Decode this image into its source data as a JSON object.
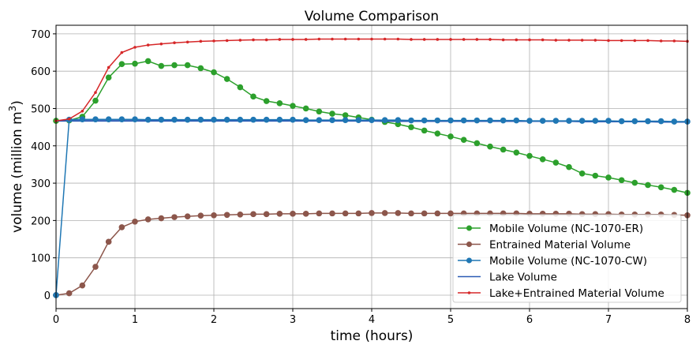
{
  "chart_data": {
    "type": "line",
    "title": "Volume Comparison",
    "xlabel": "time (hours)",
    "ylabel": "volume (million m",
    "ylabel_sup": "3",
    "ylabel_close": ")",
    "xlim": [
      0,
      8
    ],
    "ylim": [
      -36,
      723
    ],
    "xticks": [
      "0",
      "1",
      "2",
      "3",
      "4",
      "5",
      "6",
      "7",
      "8"
    ],
    "yticks": [
      "0",
      "100",
      "200",
      "300",
      "400",
      "500",
      "600",
      "700"
    ],
    "grid": true,
    "legend": "lower-right",
    "x_step_hours": 0.16667,
    "series": [
      {
        "name": "Mobile Volume (NC-1070-ER)",
        "color": "#2ca02c",
        "marker": "circle",
        "values": [
          467,
          468,
          478,
          521,
          583,
          619,
          620,
          627,
          614,
          616,
          616,
          608,
          597,
          579,
          557,
          532,
          520,
          514,
          507,
          500,
          492,
          486,
          482,
          476,
          470,
          464,
          458,
          450,
          441,
          433,
          425,
          416,
          407,
          398,
          390,
          382,
          373,
          364,
          355,
          343,
          326,
          320,
          315,
          308,
          301,
          295,
          289,
          282,
          274
        ]
      },
      {
        "name": "Entrained Material Volume",
        "color": "#8c564b",
        "marker": "circle",
        "values": [
          0,
          5,
          26,
          76,
          143,
          182,
          197,
          203,
          206,
          209,
          211,
          213,
          214,
          215,
          216,
          217,
          217,
          218,
          218,
          218,
          219,
          219,
          219,
          219,
          220,
          220,
          220,
          219,
          219,
          219,
          219,
          219,
          219,
          219,
          219,
          219,
          218,
          218,
          218,
          218,
          217,
          217,
          217,
          216,
          216,
          216,
          216,
          215,
          214
        ]
      },
      {
        "name": "Mobile Volume (NC-1070-CW)",
        "color": "#1f77b4",
        "marker": "circle",
        "values": [
          0,
          470,
          471,
          471,
          471,
          471,
          471,
          470,
          470,
          470,
          470,
          470,
          470,
          470,
          470,
          470,
          470,
          470,
          470,
          469,
          469,
          469,
          469,
          469,
          469,
          469,
          469,
          468,
          468,
          468,
          468,
          468,
          468,
          468,
          468,
          468,
          467,
          467,
          467,
          467,
          467,
          467,
          467,
          466,
          466,
          466,
          466,
          465,
          465
        ]
      },
      {
        "name": "Lake Volume",
        "color": "#2b5ab5",
        "marker": "none",
        "values": [
          467,
          467,
          467,
          467,
          467,
          467,
          467,
          467,
          467,
          467,
          467,
          467,
          467,
          467,
          467,
          467,
          467,
          467,
          467,
          467,
          467,
          467,
          467,
          467,
          467,
          466,
          466,
          466,
          466,
          466,
          466,
          466,
          466,
          466,
          466,
          466,
          466,
          466,
          466,
          466,
          465,
          465,
          465,
          465,
          465,
          465,
          464,
          464,
          464
        ]
      },
      {
        "name": "Lake+Entrained Material Volume",
        "color": "#d62728",
        "marker": "small-dot",
        "values": [
          467,
          472,
          493,
          543,
          610,
          650,
          664,
          670,
          673,
          676,
          678,
          680,
          681,
          682,
          683,
          684,
          684,
          685,
          685,
          685,
          686,
          686,
          686,
          686,
          686,
          686,
          686,
          685,
          685,
          685,
          685,
          685,
          685,
          685,
          684,
          684,
          684,
          684,
          683,
          683,
          683,
          683,
          682,
          682,
          682,
          682,
          681,
          681,
          680
        ]
      }
    ]
  }
}
